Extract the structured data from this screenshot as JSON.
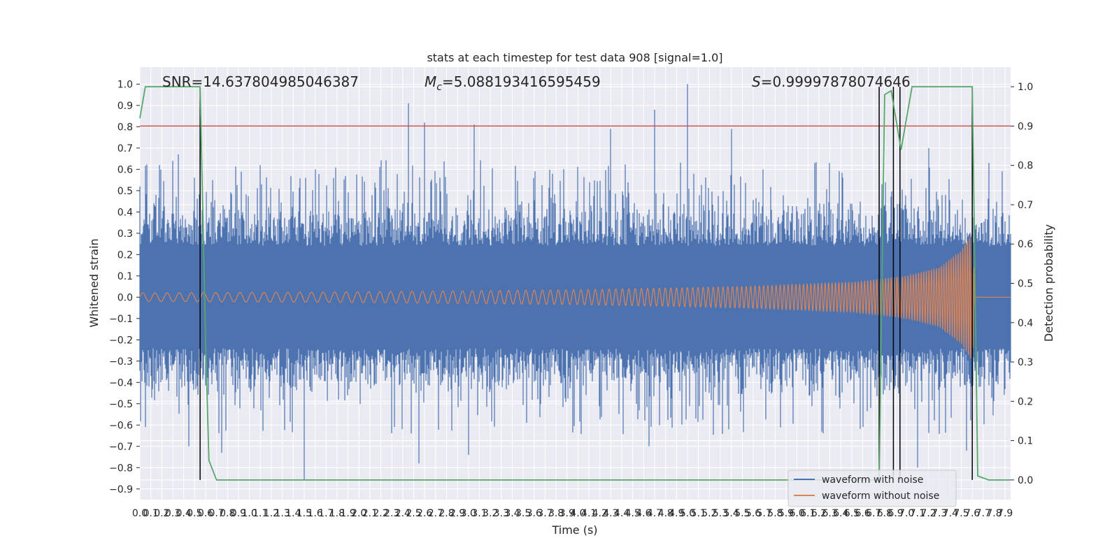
{
  "chart_data": {
    "type": "line",
    "title": "stats at each timestep for test data 908 [signal=1.0]",
    "xlabel": "Time (s)",
    "ylabel_left": "Whitened strain",
    "ylabel_right": "Detection probability",
    "xlim": [
      0.0,
      7.95
    ],
    "ylim_left": [
      -0.95,
      1.08
    ],
    "ylim_right": [
      -0.05,
      1.05
    ],
    "x_ticks": [
      "0.0",
      "0.1",
      "0.2",
      "0.3",
      "0.4",
      "0.5",
      "0.6",
      "0.7",
      "0.8",
      "0.9",
      "1.0",
      "1.1",
      "1.2",
      "1.3",
      "1.4",
      "1.5",
      "1.6",
      "1.7",
      "1.8",
      "1.9",
      "2.0",
      "2.1",
      "2.2",
      "2.3",
      "2.4",
      "2.5",
      "2.6",
      "2.7",
      "2.8",
      "2.9",
      "3.0",
      "3.1",
      "3.2",
      "3.3",
      "3.4",
      "3.5",
      "3.6",
      "3.7",
      "3.8",
      "3.9",
      "4.0",
      "4.1",
      "4.2",
      "4.3",
      "4.4",
      "4.5",
      "4.6",
      "4.7",
      "4.8",
      "4.9",
      "5.0",
      "5.1",
      "5.2",
      "5.3",
      "5.4",
      "5.5",
      "5.6",
      "5.7",
      "5.8",
      "5.9",
      "6.0",
      "6.1",
      "6.2",
      "6.3",
      "6.4",
      "6.5",
      "6.6",
      "6.7",
      "6.8",
      "6.9",
      "7.0",
      "7.1",
      "7.2",
      "7.3",
      "7.4",
      "7.5",
      "7.6",
      "7.7",
      "7.8",
      "7.9"
    ],
    "y_ticks_left": [
      "-0.9",
      "-0.8",
      "-0.7",
      "-0.6",
      "-0.5",
      "-0.4",
      "-0.3",
      "-0.2",
      "-0.1",
      "0.0",
      "0.1",
      "0.2",
      "0.3",
      "0.4",
      "0.5",
      "0.6",
      "0.7",
      "0.8",
      "0.9",
      "1.0"
    ],
    "y_ticks_right": [
      "0.0",
      "0.1",
      "0.2",
      "0.3",
      "0.4",
      "0.5",
      "0.6",
      "0.7",
      "0.8",
      "0.9",
      "1.0"
    ],
    "annotations": {
      "snr": "SNR=14.637804985046387",
      "mc_symbol": "M",
      "mc_subscript": "c",
      "mc_value": "=5.088193416595459",
      "s_symbol": "S",
      "s_value": "=0.99997878074646"
    },
    "legend": {
      "position": "lower-right",
      "entries": [
        "waveform with noise",
        "waveform without noise"
      ]
    },
    "grid": true,
    "threshold_right": 0.9,
    "vlines_x": [
      0.55,
      6.75,
      6.88,
      6.94,
      7.6
    ],
    "series": [
      {
        "name": "waveform with noise",
        "axis": "left",
        "description_values": "dense noisy strain, typical amplitude ±0.3, peaks up to 1.0",
        "peaks": [
          {
            "x": 0.0,
            "y": 0.52
          },
          {
            "x": 0.18,
            "y": 0.62
          },
          {
            "x": 0.35,
            "y": 0.67
          },
          {
            "x": 0.55,
            "y": 0.69
          },
          {
            "x": 1.1,
            "y": 0.62
          },
          {
            "x": 1.6,
            "y": 0.6
          },
          {
            "x": 2.45,
            "y": 0.91
          },
          {
            "x": 2.6,
            "y": 0.82
          },
          {
            "x": 3.05,
            "y": 0.81
          },
          {
            "x": 4.3,
            "y": 0.79
          },
          {
            "x": 4.7,
            "y": 0.88
          },
          {
            "x": 5.0,
            "y": 1.0
          },
          {
            "x": 5.4,
            "y": 0.79
          },
          {
            "x": 7.2,
            "y": 0.7
          },
          {
            "x": 7.75,
            "y": 0.63
          }
        ],
        "troughs": [
          {
            "x": 0.05,
            "y": -0.61
          },
          {
            "x": 0.45,
            "y": -0.7
          },
          {
            "x": 0.75,
            "y": -0.73
          },
          {
            "x": 1.5,
            "y": -0.86
          },
          {
            "x": 2.55,
            "y": -0.78
          },
          {
            "x": 3.0,
            "y": -0.74
          },
          {
            "x": 4.65,
            "y": -0.7
          },
          {
            "x": 7.1,
            "y": -0.8
          },
          {
            "x": 7.55,
            "y": -0.72
          }
        ]
      },
      {
        "name": "waveform without noise",
        "axis": "left",
        "envelope": [
          {
            "x": 0.0,
            "amp": 0.02
          },
          {
            "x": 2.0,
            "amp": 0.025
          },
          {
            "x": 4.0,
            "amp": 0.035
          },
          {
            "x": 5.5,
            "amp": 0.05
          },
          {
            "x": 6.5,
            "amp": 0.07
          },
          {
            "x": 7.0,
            "amp": 0.1
          },
          {
            "x": 7.3,
            "amp": 0.14
          },
          {
            "x": 7.5,
            "amp": 0.22
          },
          {
            "x": 7.6,
            "amp": 0.3
          },
          {
            "x": 7.63,
            "amp": 0.0
          },
          {
            "x": 7.95,
            "amp": 0.0
          }
        ]
      },
      {
        "name": "Detection probability",
        "axis": "right",
        "points": [
          {
            "x": 0.0,
            "y": 0.92
          },
          {
            "x": 0.05,
            "y": 1.0
          },
          {
            "x": 0.55,
            "y": 1.0
          },
          {
            "x": 0.6,
            "y": 0.35
          },
          {
            "x": 0.63,
            "y": 0.05
          },
          {
            "x": 0.7,
            "y": 0.0
          },
          {
            "x": 6.75,
            "y": 0.0
          },
          {
            "x": 6.8,
            "y": 0.98
          },
          {
            "x": 6.86,
            "y": 0.99
          },
          {
            "x": 6.95,
            "y": 0.84
          },
          {
            "x": 7.05,
            "y": 1.0
          },
          {
            "x": 7.6,
            "y": 1.0
          },
          {
            "x": 7.65,
            "y": 0.01
          },
          {
            "x": 7.75,
            "y": 0.0
          },
          {
            "x": 7.95,
            "y": 0.0
          }
        ]
      }
    ],
    "colors": {
      "axes_bg": "#eaeaf2",
      "grid": "#ffffff",
      "noise": "#4c72b0",
      "clean": "#dd8452",
      "prob": "#55a868",
      "threshold": "#c44e52",
      "vlines": "#000000"
    }
  }
}
